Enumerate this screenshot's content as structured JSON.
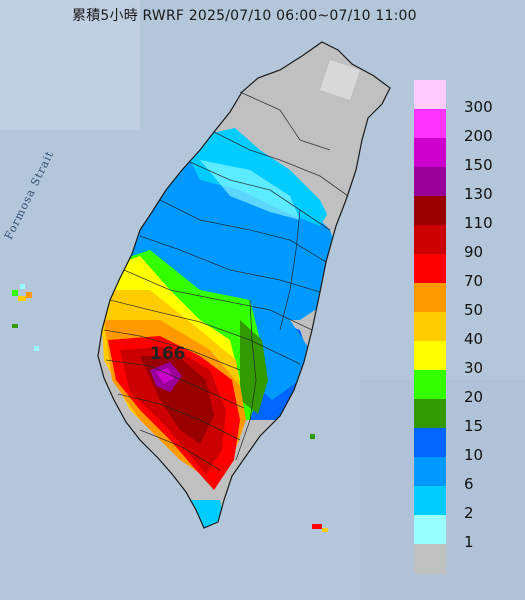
{
  "map": {
    "title": "累積5小時 RWRF 2025/07/10 06:00~07/10 11:00",
    "strait_label": "Formosa Strait",
    "peak_value": "166"
  },
  "legend": {
    "levels": [
      {
        "label": "300",
        "color": "#ffccff"
      },
      {
        "label": "200",
        "color": "#ff33ff"
      },
      {
        "label": "150",
        "color": "#cc00cc"
      },
      {
        "label": "130",
        "color": "#990099"
      },
      {
        "label": "110",
        "color": "#990000"
      },
      {
        "label": "90",
        "color": "#cc0000"
      },
      {
        "label": "70",
        "color": "#ff0000"
      },
      {
        "label": "50",
        "color": "#ff9900"
      },
      {
        "label": "40",
        "color": "#ffcc00"
      },
      {
        "label": "30",
        "color": "#ffff00"
      },
      {
        "label": "20",
        "color": "#33ff00"
      },
      {
        "label": "15",
        "color": "#339900"
      },
      {
        "label": "10",
        "color": "#0066ff"
      },
      {
        "label": "6",
        "color": "#0099ff"
      },
      {
        "label": "2",
        "color": "#00ccff"
      },
      {
        "label": "1",
        "color": "#99ffff"
      },
      {
        "label": "",
        "color": "#c0c0c0"
      }
    ]
  }
}
